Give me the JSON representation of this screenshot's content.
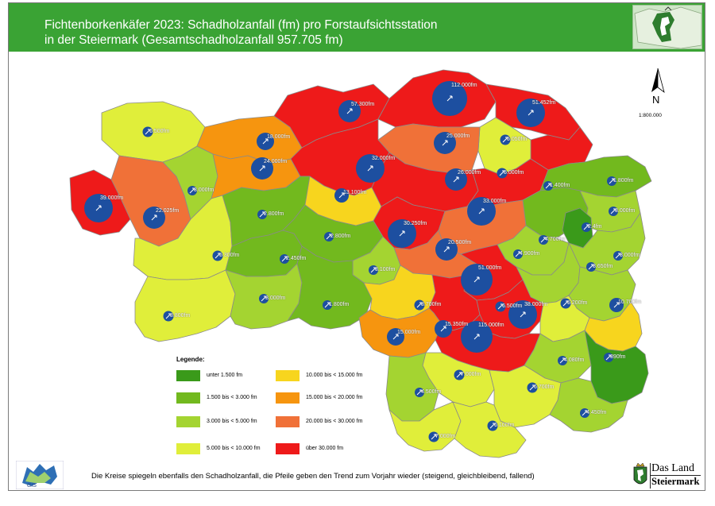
{
  "header": {
    "title_line1": "Fichtenborkenkäfer 2023: Schadholzanfall (fm) pro Forstaufsichtsstation",
    "title_line2": "in der Steiermark (Gesamtschadholzanfall 957.705 fm)"
  },
  "colors": {
    "header_green": "#3aa334",
    "class_1": "#3a9a1a",
    "class_2": "#72b91e",
    "class_3": "#a4d431",
    "class_4": "#e0ee3a",
    "class_5": "#f7d51e",
    "class_6": "#f6950f",
    "class_7": "#f07138",
    "class_8": "#ee1a1a",
    "circle": "#1d4fa0"
  },
  "map": {
    "north_label": "N",
    "scale_label": "1:800.000",
    "stations": [
      {
        "label": "6.500fm",
        "class": 4,
        "trend": "up"
      },
      {
        "label": "18.000fm",
        "class": 6,
        "trend": "up"
      },
      {
        "label": "57.300fm",
        "class": 8,
        "trend": "up"
      },
      {
        "label": "112.000fm",
        "class": 8,
        "trend": "up"
      },
      {
        "label": "51.452fm",
        "class": 8,
        "trend": "up"
      },
      {
        "label": "25.000fm",
        "class": 7,
        "trend": "up"
      },
      {
        "label": "5.050fm",
        "class": 4,
        "trend": "up"
      },
      {
        "label": "5.000fm",
        "class": 4,
        "trend": "up"
      },
      {
        "label": "1.800fm",
        "class": 2,
        "trend": "up"
      },
      {
        "label": "1.400fm",
        "class": 1,
        "trend": "up"
      },
      {
        "label": "3.000fm",
        "class": 3,
        "trend": "up"
      },
      {
        "label": "26.000fm",
        "class": 7,
        "trend": "up"
      },
      {
        "label": "32.000fm",
        "class": 8,
        "trend": "up"
      },
      {
        "label": "24.000fm",
        "class": 7,
        "trend": "up"
      },
      {
        "label": "39.000fm",
        "class": 8,
        "trend": "up"
      },
      {
        "label": "22.025fm",
        "class": 7,
        "trend": "up"
      },
      {
        "label": "3.000fm",
        "class": 3,
        "trend": "up"
      },
      {
        "label": "13.100fm",
        "class": 5,
        "trend": "up"
      },
      {
        "label": "30.250fm",
        "class": 8,
        "trend": "up"
      },
      {
        "label": "2.800fm",
        "class": 2,
        "trend": "up"
      },
      {
        "label": "2.800fm",
        "class": 2,
        "trend": "up"
      },
      {
        "label": "33.000fm",
        "class": 8,
        "trend": "up"
      },
      {
        "label": "4.700fm",
        "class": 3,
        "trend": "up"
      },
      {
        "label": "2.4fm",
        "class": 2,
        "trend": "up"
      },
      {
        "label": "3.000fm",
        "class": 3,
        "trend": "up"
      },
      {
        "label": "5.300fm",
        "class": 4,
        "trend": "up"
      },
      {
        "label": "2.450fm",
        "class": 2,
        "trend": "up"
      },
      {
        "label": "3.100fm",
        "class": 3,
        "trend": "up"
      },
      {
        "label": "20.500fm",
        "class": 7,
        "trend": "up"
      },
      {
        "label": "4.900fm",
        "class": 3,
        "trend": "up"
      },
      {
        "label": "3.650fm",
        "class": 3,
        "trend": "up"
      },
      {
        "label": "51.000fm",
        "class": 8,
        "trend": "up"
      },
      {
        "label": "3.000fm",
        "class": 3,
        "trend": "up"
      },
      {
        "label": "1.800fm",
        "class": 2,
        "trend": "up"
      },
      {
        "label": "8.700fm",
        "class": 4,
        "trend": "up"
      },
      {
        "label": "6.500fm",
        "class": 4,
        "trend": "up"
      },
      {
        "label": "38.000fm",
        "class": 8,
        "trend": "up"
      },
      {
        "label": "5.200fm",
        "class": 4,
        "trend": "up"
      },
      {
        "label": "10.700fm",
        "class": 5,
        "trend": "up"
      },
      {
        "label": "8.800fm",
        "class": 4,
        "trend": "up"
      },
      {
        "label": "15.350fm",
        "class": 6,
        "trend": "up"
      },
      {
        "label": "15.000fm",
        "class": 6,
        "trend": "up"
      },
      {
        "label": "115.000fm",
        "class": 8,
        "trend": "up"
      },
      {
        "label": "4.080fm",
        "class": 3,
        "trend": "up"
      },
      {
        "label": "390fm",
        "class": 1,
        "trend": "up"
      },
      {
        "label": "7.000fm",
        "class": 4,
        "trend": "up"
      },
      {
        "label": "4.500fm",
        "class": 3,
        "trend": "up"
      },
      {
        "label": "6.700fm",
        "class": 4,
        "trend": "up"
      },
      {
        "label": "4.450fm",
        "class": 3,
        "trend": "up"
      },
      {
        "label": "7.000fm",
        "class": 4,
        "trend": "up"
      },
      {
        "label": "6.100fm",
        "class": 4,
        "trend": "up"
      }
    ]
  },
  "legend": {
    "title": "Legende:",
    "items": [
      {
        "label": "unter  1.500 fm",
        "class": 1
      },
      {
        "label": "1.500 bis <  3.000 fm",
        "class": 2
      },
      {
        "label": "3.000 bis <  5.000 fm",
        "class": 3
      },
      {
        "label": "5.000 bis < 10.000 fm",
        "class": 4
      },
      {
        "label": "10.000 bis < 15.000 fm",
        "class": 5
      },
      {
        "label": "15.000 bis < 20.000 fm",
        "class": 6
      },
      {
        "label": "20.000 bis < 30.000 fm",
        "class": 7
      },
      {
        "label": "über 30.000 fm",
        "class": 8
      }
    ]
  },
  "footer": {
    "note": "Die Kreise spiegeln ebenfalls den Schadholzanfall, die Pfeile geben den Trend zum Vorjahr wieder (steigend, gleichbleibend, fallend)",
    "gis_logo": "GIS",
    "brand_line1": "Das Land",
    "brand_line2": "Steiermark"
  }
}
